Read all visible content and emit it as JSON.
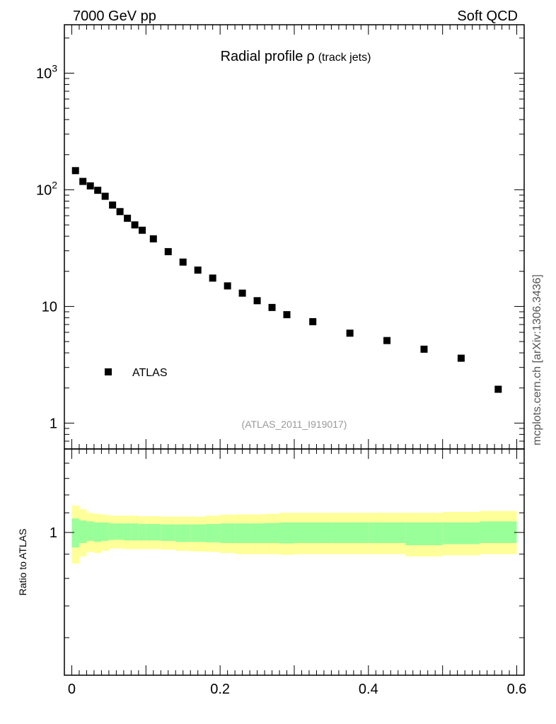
{
  "header": {
    "energy": "7000 GeV pp",
    "category": "Soft QCD"
  },
  "side_label": "mcplots.cern.ch [arXiv:1306.3436]",
  "chart_data": [
    {
      "type": "scatter",
      "panel": "main",
      "title": "Radial profile",
      "title_symbol": "ρ",
      "title_sub": "(track jets)",
      "analysis": "(ATLAS_2011_I919017)",
      "yscale": "log",
      "xlim": [
        -0.01,
        0.61
      ],
      "ylim": [
        0.6,
        2600
      ],
      "legend": {
        "position": "bottom-left",
        "entries": [
          {
            "name": "ATLAS",
            "marker": "square",
            "color": "#000000"
          }
        ]
      },
      "yticks": [
        {
          "value": 1,
          "base": "1",
          "exp": ""
        },
        {
          "value": 10,
          "base": "10",
          "exp": ""
        },
        {
          "value": 100,
          "base": "10",
          "exp": "2"
        },
        {
          "value": 1000,
          "base": "10",
          "exp": "3"
        }
      ],
      "series": [
        {
          "name": "ATLAS",
          "x": [
            0.005,
            0.015,
            0.025,
            0.035,
            0.045,
            0.055,
            0.065,
            0.075,
            0.085,
            0.095,
            0.11,
            0.13,
            0.15,
            0.17,
            0.19,
            0.21,
            0.23,
            0.25,
            0.27,
            0.29,
            0.325,
            0.375,
            0.425,
            0.475,
            0.525,
            0.575
          ],
          "y": [
            146,
            118,
            108,
            99,
            88,
            74,
            65,
            57,
            50,
            45,
            38,
            29.5,
            24,
            20.5,
            17.5,
            15,
            13,
            11.2,
            9.8,
            8.5,
            7.4,
            5.9,
            5.1,
            4.3,
            3.6,
            1.95
          ]
        }
      ]
    },
    {
      "type": "area",
      "panel": "ratio",
      "ylabel": "Ratio to ATLAS",
      "xlim": [
        -0.01,
        0.61
      ],
      "ylim": [
        0.5,
        1.5
      ],
      "xticks": [
        0,
        0.2,
        0.4,
        0.6
      ],
      "xtick_labels": [
        "0",
        "0.2",
        "0.4",
        "0.6"
      ],
      "yticks": [
        1
      ],
      "ytick_labels": [
        "1"
      ],
      "band_colors": {
        "inner": "#99ff99",
        "outer": "#ffff99"
      },
      "bins": [
        {
          "lo": 0.0,
          "hi": 0.01,
          "inner": [
            0.93,
            1.07
          ],
          "outer": [
            0.86,
            1.14
          ]
        },
        {
          "lo": 0.01,
          "hi": 0.02,
          "inner": [
            0.95,
            1.06
          ],
          "outer": [
            0.89,
            1.12
          ]
        },
        {
          "lo": 0.02,
          "hi": 0.03,
          "inner": [
            0.96,
            1.055
          ],
          "outer": [
            0.91,
            1.1
          ]
        },
        {
          "lo": 0.03,
          "hi": 0.04,
          "inner": [
            0.955,
            1.05
          ],
          "outer": [
            0.905,
            1.095
          ]
        },
        {
          "lo": 0.04,
          "hi": 0.05,
          "inner": [
            0.96,
            1.05
          ],
          "outer": [
            0.915,
            1.09
          ]
        },
        {
          "lo": 0.05,
          "hi": 0.06,
          "inner": [
            0.965,
            1.045
          ],
          "outer": [
            0.925,
            1.085
          ]
        },
        {
          "lo": 0.06,
          "hi": 0.07,
          "inner": [
            0.965,
            1.045
          ],
          "outer": [
            0.925,
            1.085
          ]
        },
        {
          "lo": 0.07,
          "hi": 0.08,
          "inner": [
            0.962,
            1.045
          ],
          "outer": [
            0.922,
            1.085
          ]
        },
        {
          "lo": 0.08,
          "hi": 0.09,
          "inner": [
            0.962,
            1.045
          ],
          "outer": [
            0.922,
            1.085
          ]
        },
        {
          "lo": 0.09,
          "hi": 0.1,
          "inner": [
            0.962,
            1.042
          ],
          "outer": [
            0.922,
            1.082
          ]
        },
        {
          "lo": 0.1,
          "hi": 0.12,
          "inner": [
            0.962,
            1.042
          ],
          "outer": [
            0.922,
            1.082
          ]
        },
        {
          "lo": 0.12,
          "hi": 0.14,
          "inner": [
            0.96,
            1.04
          ],
          "outer": [
            0.92,
            1.08
          ]
        },
        {
          "lo": 0.14,
          "hi": 0.16,
          "inner": [
            0.955,
            1.04
          ],
          "outer": [
            0.915,
            1.08
          ]
        },
        {
          "lo": 0.16,
          "hi": 0.18,
          "inner": [
            0.955,
            1.04
          ],
          "outer": [
            0.912,
            1.08
          ]
        },
        {
          "lo": 0.18,
          "hi": 0.2,
          "inner": [
            0.953,
            1.042
          ],
          "outer": [
            0.91,
            1.085
          ]
        },
        {
          "lo": 0.2,
          "hi": 0.22,
          "inner": [
            0.95,
            1.045
          ],
          "outer": [
            0.905,
            1.09
          ]
        },
        {
          "lo": 0.22,
          "hi": 0.24,
          "inner": [
            0.95,
            1.045
          ],
          "outer": [
            0.9,
            1.092
          ]
        },
        {
          "lo": 0.24,
          "hi": 0.26,
          "inner": [
            0.95,
            1.045
          ],
          "outer": [
            0.9,
            1.092
          ]
        },
        {
          "lo": 0.26,
          "hi": 0.28,
          "inner": [
            0.95,
            1.047
          ],
          "outer": [
            0.9,
            1.095
          ]
        },
        {
          "lo": 0.28,
          "hi": 0.3,
          "inner": [
            0.948,
            1.05
          ],
          "outer": [
            0.897,
            1.1
          ]
        },
        {
          "lo": 0.3,
          "hi": 0.35,
          "inner": [
            0.95,
            1.05
          ],
          "outer": [
            0.9,
            1.1
          ]
        },
        {
          "lo": 0.35,
          "hi": 0.4,
          "inner": [
            0.95,
            1.05
          ],
          "outer": [
            0.9,
            1.1
          ]
        },
        {
          "lo": 0.4,
          "hi": 0.45,
          "inner": [
            0.95,
            1.05
          ],
          "outer": [
            0.9,
            1.1
          ]
        },
        {
          "lo": 0.45,
          "hi": 0.5,
          "inner": [
            0.94,
            1.05
          ],
          "outer": [
            0.89,
            1.1
          ]
        },
        {
          "lo": 0.5,
          "hi": 0.55,
          "inner": [
            0.945,
            1.05
          ],
          "outer": [
            0.895,
            1.105
          ]
        },
        {
          "lo": 0.55,
          "hi": 0.6,
          "inner": [
            0.95,
            1.055
          ],
          "outer": [
            0.9,
            1.11
          ]
        }
      ]
    }
  ]
}
